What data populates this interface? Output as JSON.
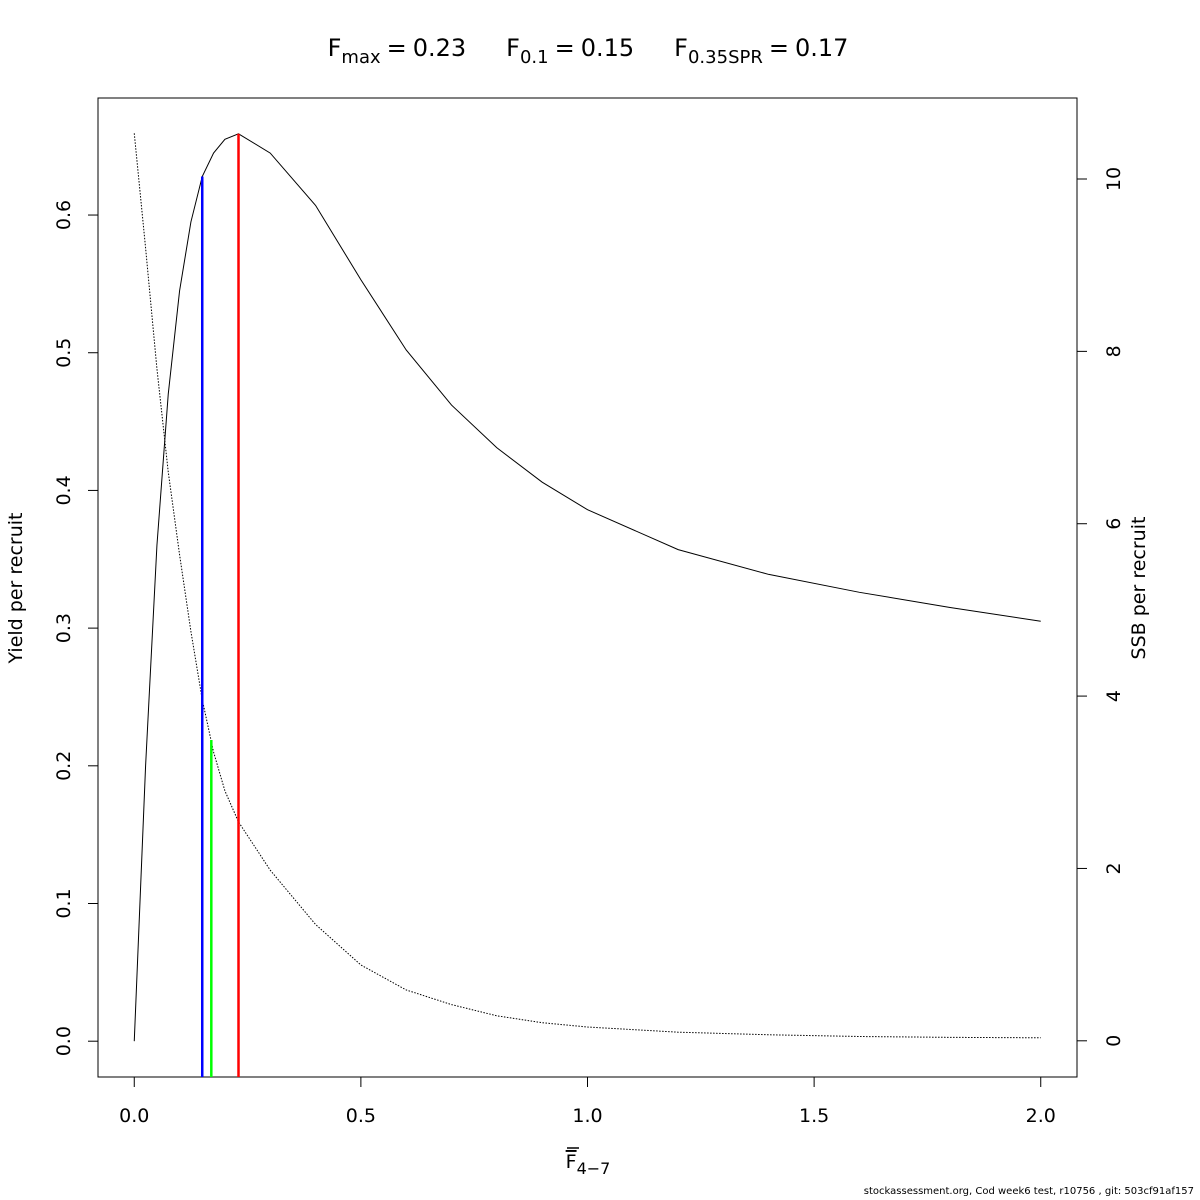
{
  "chart_data": {
    "type": "line",
    "reference_points": [
      {
        "symbol": "F",
        "sub": "max",
        "eq": "=",
        "value": 0.23,
        "color": "#ff0000",
        "top": 0.659,
        "axis": "y"
      },
      {
        "symbol": "F",
        "sub": "0.1",
        "eq": "=",
        "value": 0.15,
        "color": "#0000ff",
        "top": 0.628,
        "axis": "y"
      },
      {
        "symbol": "F",
        "sub": "0.35SPR",
        "eq": "=",
        "value": 0.17,
        "color": "#00ff00",
        "top": 3.49,
        "axis": "y2"
      }
    ],
    "x_label": {
      "symbol": "F",
      "sub": "4−7"
    },
    "y_label": "Yield per recruit",
    "y2_label": "SSB per recruit",
    "footer": "stockassessment.org, Cod week6 test, r10756 , git: 503cf91af157",
    "x": [
      0,
      0.025,
      0.05,
      0.075,
      0.1,
      0.125,
      0.15,
      0.175,
      0.2,
      0.23,
      0.3,
      0.4,
      0.5,
      0.6,
      0.7,
      0.8,
      0.9,
      1.0,
      1.2,
      1.4,
      1.6,
      1.8,
      2.0
    ],
    "series": [
      {
        "axis": "y",
        "color": "#000000",
        "dashed": false,
        "values": [
          0,
          0.2,
          0.36,
          0.47,
          0.545,
          0.595,
          0.628,
          0.645,
          0.655,
          0.659,
          0.645,
          0.607,
          0.553,
          0.502,
          0.462,
          0.431,
          0.406,
          0.386,
          0.357,
          0.339,
          0.326,
          0.315,
          0.305
        ]
      },
      {
        "axis": "y2",
        "color": "#000000",
        "dashed": true,
        "values": [
          10.53,
          9.2,
          7.8,
          6.6,
          5.64,
          4.75,
          3.96,
          3.35,
          2.9,
          2.54,
          1.98,
          1.35,
          0.88,
          0.59,
          0.42,
          0.29,
          0.21,
          0.16,
          0.1,
          0.07,
          0.05,
          0.04,
          0.035
        ]
      }
    ],
    "xlim": [
      -0.08,
      2.08
    ],
    "xticks": [
      {
        "value": 0,
        "label": "0.0"
      },
      {
        "value": 0.5,
        "label": "0.5"
      },
      {
        "value": 1,
        "label": "1.0"
      },
      {
        "value": 1.5,
        "label": "1.5"
      },
      {
        "value": 2,
        "label": "2.0"
      }
    ],
    "ylim": [
      -0.026,
      0.685
    ],
    "yticks": [
      {
        "value": 0,
        "label": "0.0"
      },
      {
        "value": 0.1,
        "label": "0.1"
      },
      {
        "value": 0.2,
        "label": "0.2"
      },
      {
        "value": 0.3,
        "label": "0.3"
      },
      {
        "value": 0.4,
        "label": "0.4"
      },
      {
        "value": 0.5,
        "label": "0.5"
      },
      {
        "value": 0.6,
        "label": "0.6"
      }
    ],
    "y2lim": [
      -0.42,
      10.94
    ],
    "y2ticks": [
      0,
      2,
      4,
      6,
      8,
      10
    ]
  }
}
